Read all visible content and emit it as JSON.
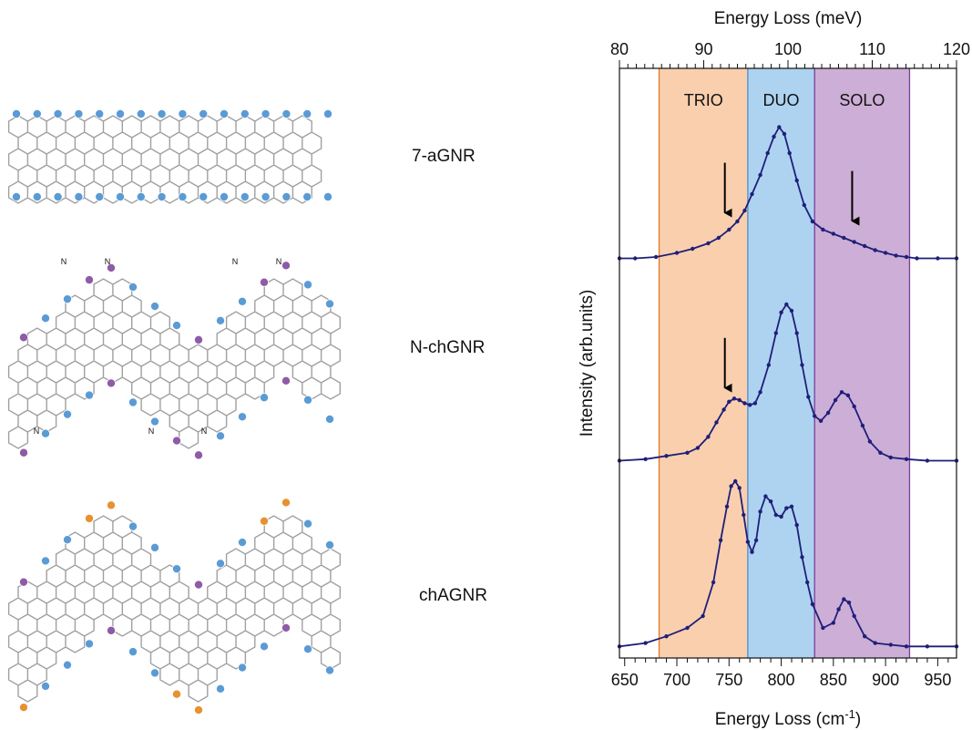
{
  "ribbons": [
    {
      "label": "7-aGNR",
      "edge_color": "#5b9bd5"
    },
    {
      "label": "N-chGNR",
      "edge_color": "#8e5ba6",
      "n_label": "N"
    },
    {
      "label": "chAGNR",
      "edge_color": "#e8912f"
    }
  ],
  "colors": {
    "trio": "#f9c7a0",
    "duo": "#9fcbef",
    "solo": "#c4a0d0",
    "trio_line": "#e07a2a",
    "duo_line": "#4c8fd0",
    "solo_line": "#7a3f96",
    "series": "#1f1f78",
    "hydrogen_blue": "#5b9bd5",
    "hydrogen_purple": "#8e5ba6",
    "hydrogen_orange": "#e8912f",
    "lattice": "#a0a0a0"
  },
  "chart_data": {
    "type": "line",
    "xlabel_bottom_prefix": "Energy Loss (cm",
    "xlabel_bottom_exp": "-1",
    "xlabel_bottom_suffix": ")",
    "xlabel_top": "Energy Loss (meV)",
    "ylabel": "Intensity (arb.units)",
    "xlim_cm": [
      645,
      968
    ],
    "xticks_cm": [
      650,
      700,
      750,
      800,
      850,
      900,
      950
    ],
    "xlim_mev": [
      80,
      120
    ],
    "xticks_mev": [
      80,
      90,
      100,
      110,
      120
    ],
    "regions": [
      {
        "name": "TRIO",
        "from": 683,
        "to": 768
      },
      {
        "name": "DUO",
        "from": 768,
        "to": 832
      },
      {
        "name": "SOLO",
        "from": 832,
        "to": 923
      }
    ],
    "series": [
      {
        "x": [
          645,
          660,
          680,
          700,
          715,
          730,
          740,
          750,
          758,
          765,
          772,
          780,
          787,
          793,
          798,
          803,
          808,
          815,
          822,
          830,
          840,
          850,
          860,
          870,
          880,
          890,
          900,
          910,
          920,
          930,
          950,
          968
        ],
        "y": [
          0.01,
          0.01,
          0.02,
          0.05,
          0.08,
          0.12,
          0.16,
          0.22,
          0.28,
          0.36,
          0.48,
          0.62,
          0.78,
          0.9,
          0.97,
          0.92,
          0.78,
          0.58,
          0.4,
          0.28,
          0.22,
          0.19,
          0.16,
          0.13,
          0.1,
          0.07,
          0.05,
          0.03,
          0.02,
          0.01,
          0.01,
          0.01
        ]
      },
      {
        "x": [
          645,
          670,
          690,
          710,
          720,
          730,
          738,
          745,
          750,
          755,
          760,
          765,
          770,
          775,
          780,
          788,
          795,
          800,
          805,
          810,
          815,
          820,
          826,
          832,
          838,
          845,
          852,
          858,
          864,
          870,
          878,
          885,
          895,
          905,
          920,
          940,
          968
        ],
        "y": [
          0.02,
          0.03,
          0.05,
          0.07,
          0.1,
          0.17,
          0.26,
          0.34,
          0.39,
          0.41,
          0.4,
          0.38,
          0.37,
          0.38,
          0.45,
          0.62,
          0.82,
          0.95,
          1.0,
          0.96,
          0.82,
          0.62,
          0.42,
          0.3,
          0.27,
          0.32,
          0.4,
          0.45,
          0.43,
          0.36,
          0.24,
          0.14,
          0.07,
          0.04,
          0.03,
          0.02,
          0.02
        ]
      },
      {
        "x": [
          645,
          670,
          690,
          710,
          725,
          735,
          742,
          748,
          752,
          756,
          760,
          764,
          768,
          772,
          776,
          780,
          785,
          790,
          795,
          800,
          805,
          810,
          815,
          820,
          825,
          830,
          840,
          850,
          855,
          860,
          865,
          870,
          880,
          890,
          905,
          920,
          940,
          968
        ],
        "y": [
          0.02,
          0.04,
          0.08,
          0.13,
          0.2,
          0.4,
          0.65,
          0.85,
          0.97,
          1.0,
          0.96,
          0.8,
          0.64,
          0.58,
          0.65,
          0.82,
          0.91,
          0.88,
          0.8,
          0.79,
          0.84,
          0.85,
          0.74,
          0.55,
          0.4,
          0.27,
          0.13,
          0.16,
          0.24,
          0.3,
          0.28,
          0.2,
          0.08,
          0.04,
          0.03,
          0.02,
          0.02,
          0.02
        ]
      }
    ],
    "arrows": [
      {
        "x": 746,
        "series": 0
      },
      {
        "x": 868,
        "series": 0
      },
      {
        "x": 746,
        "series": 1
      }
    ]
  }
}
